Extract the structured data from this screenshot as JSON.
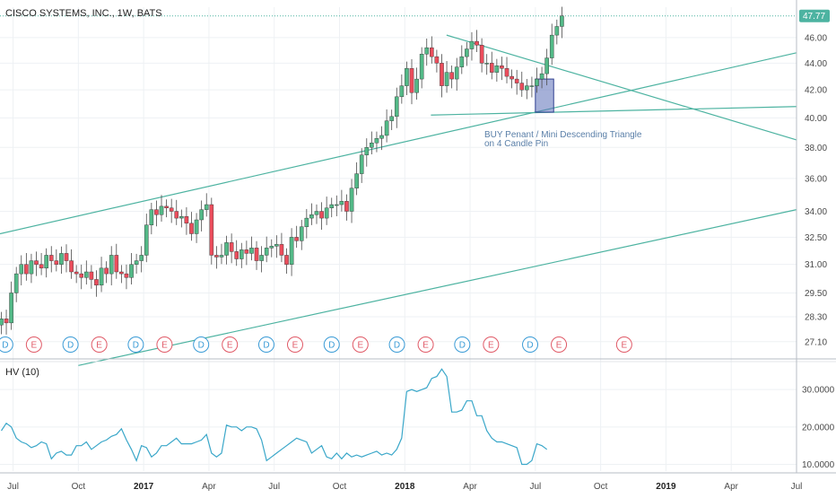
{
  "chart_data": {
    "type": "candlestick",
    "title": "CISCO SYSTEMS, INC., 1W, BATS",
    "last_price": "47.77",
    "last_value": 47.77,
    "colors": {
      "up": "#53b987",
      "down": "#eb4d5c",
      "wick": "#4a4a4a",
      "trendline": "#4db3a1",
      "box_fill": "#5b6fb8",
      "hv_line": "#3aa7c9",
      "last_price_bg": "#4db3a1",
      "event_d": "#3a9bd6",
      "event_e": "#e05a67"
    },
    "price_axis": {
      "scale": "log",
      "ticks": [
        "46.00",
        "44.00",
        "42.00",
        "40.00",
        "38.00",
        "36.00",
        "34.00",
        "32.50",
        "31.00",
        "29.50",
        "28.30",
        "27.10"
      ],
      "range": [
        26.3,
        48.5
      ]
    },
    "time_axis": {
      "ticks": [
        {
          "label": "Jul",
          "x": 2016.5,
          "bold": false
        },
        {
          "label": "Oct",
          "x": 2016.75,
          "bold": false
        },
        {
          "label": "2017",
          "x": 2017.0,
          "bold": true
        },
        {
          "label": "Apr",
          "x": 2017.25,
          "bold": false
        },
        {
          "label": "Jul",
          "x": 2017.5,
          "bold": false
        },
        {
          "label": "Oct",
          "x": 2017.75,
          "bold": false
        },
        {
          "label": "2018",
          "x": 2018.0,
          "bold": true
        },
        {
          "label": "Apr",
          "x": 2018.25,
          "bold": false
        },
        {
          "label": "Jul",
          "x": 2018.5,
          "bold": false
        },
        {
          "label": "Oct",
          "x": 2018.75,
          "bold": false
        },
        {
          "label": "2019",
          "x": 2019.0,
          "bold": true
        },
        {
          "label": "Apr",
          "x": 2019.25,
          "bold": false
        },
        {
          "label": "Jul",
          "x": 2019.5,
          "bold": false
        }
      ],
      "range": [
        2016.45,
        2019.5
      ]
    },
    "candles_close": [
      28.2,
      28.0,
      29.5,
      30.5,
      31.0,
      30.5,
      31.2,
      31.0,
      30.8,
      31.5,
      31.2,
      31.0,
      31.6,
      31.2,
      30.6,
      30.5,
      30.3,
      30.6,
      30.2,
      29.9,
      30.8,
      30.5,
      31.5,
      30.6,
      30.5,
      30.3,
      31.0,
      31.2,
      31.5,
      33.2,
      34.1,
      33.8,
      34.3,
      34.2,
      34.0,
      33.6,
      33.7,
      33.3,
      32.7,
      33.5,
      34.1,
      34.4,
      31.5,
      31.4,
      31.5,
      32.2,
      31.7,
      31.3,
      31.8,
      31.6,
      31.9,
      31.2,
      31.5,
      31.9,
      32.0,
      32.1,
      31.5,
      31.0,
      32.5,
      32.3,
      33.1,
      33.6,
      33.8,
      34.0,
      33.6,
      34.2,
      34.4,
      34.4,
      34.6,
      34.0,
      35.4,
      36.3,
      37.5,
      38.0,
      38.3,
      38.6,
      38.8,
      39.8,
      40.1,
      41.5,
      42.3,
      43.6,
      41.8,
      42.8,
      44.7,
      45.2,
      44.5,
      44.0,
      42.3,
      43.3,
      42.8,
      43.7,
      44.5,
      45.1,
      45.7,
      45.4,
      44.0,
      44.0,
      43.3,
      43.8,
      43.6,
      43.0,
      42.8,
      42.5,
      42.0,
      42.3,
      42.3,
      42.8,
      43.2,
      44.4,
      46.2,
      46.9,
      47.77
    ],
    "trendlines": [
      {
        "from": [
          2016.45,
          32.7
        ],
        "to": [
          2019.5,
          44.8
        ]
      },
      {
        "from": [
          2016.75,
          26.0
        ],
        "to": [
          2019.5,
          34.1
        ]
      },
      {
        "from": [
          2018.1,
          40.2
        ],
        "to": [
          2019.5,
          40.8
        ]
      },
      {
        "from": [
          2018.16,
          46.2
        ],
        "to": [
          2019.5,
          38.5
        ]
      }
    ],
    "note_box": {
      "x0": 2018.5,
      "x1": 2018.57,
      "y0": 40.4,
      "y1": 42.8
    },
    "annotation_lines": [
      "BUY Penant / Mini Descending Triangle",
      "on 4 Candle Pin"
    ],
    "events": [
      {
        "type": "D",
        "x": 2016.47
      },
      {
        "type": "E",
        "x": 2016.58
      },
      {
        "type": "D",
        "x": 2016.72
      },
      {
        "type": "E",
        "x": 2016.83
      },
      {
        "type": "D",
        "x": 2016.97
      },
      {
        "type": "E",
        "x": 2017.08
      },
      {
        "type": "D",
        "x": 2017.22
      },
      {
        "type": "E",
        "x": 2017.33
      },
      {
        "type": "D",
        "x": 2017.47
      },
      {
        "type": "E",
        "x": 2017.58
      },
      {
        "type": "D",
        "x": 2017.72
      },
      {
        "type": "E",
        "x": 2017.83
      },
      {
        "type": "D",
        "x": 2017.97
      },
      {
        "type": "E",
        "x": 2018.08
      },
      {
        "type": "D",
        "x": 2018.22
      },
      {
        "type": "E",
        "x": 2018.33
      },
      {
        "type": "D",
        "x": 2018.48
      },
      {
        "type": "E",
        "x": 2018.59
      },
      {
        "type": "E",
        "x": 2018.84
      }
    ],
    "hv_panel": {
      "label": "HV (10)",
      "ticks": [
        "30.0000",
        "20.0000",
        "10.0000"
      ],
      "tick_values": [
        30,
        20,
        10
      ],
      "range": [
        8.2,
        37
      ],
      "values": [
        19,
        21,
        20,
        17,
        16,
        15.5,
        14.5,
        15,
        16,
        15.5,
        11.5,
        13,
        13.5,
        12.5,
        12.5,
        15,
        15,
        16,
        14,
        15,
        16,
        16.5,
        17.5,
        18,
        19.5,
        16.5,
        14,
        11,
        15,
        14.5,
        12,
        13,
        15,
        15,
        16,
        17,
        15.5,
        15.5,
        15.5,
        16,
        16.5,
        18,
        13,
        12,
        13,
        20.5,
        20,
        20,
        19,
        20,
        20,
        19.5,
        16.5,
        11,
        12,
        13,
        14,
        15,
        16,
        17,
        16.5,
        16,
        13,
        14,
        15,
        12,
        11.5,
        13,
        11.5,
        13,
        12,
        12.5,
        12,
        12.5,
        13,
        13.5,
        12.5,
        13,
        12.5,
        14,
        17,
        29.5,
        30,
        29.5,
        30,
        30.5,
        33,
        33.5,
        35.5,
        33.5,
        24,
        24,
        24.5,
        27,
        27,
        23,
        23,
        19,
        17,
        16,
        16,
        15.5,
        15,
        14.5,
        10,
        10,
        11,
        15.5,
        15,
        14
      ]
    }
  }
}
